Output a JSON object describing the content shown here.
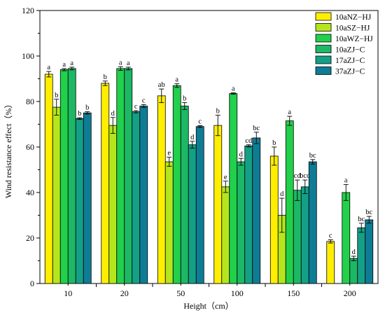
{
  "chart_data": {
    "type": "bar",
    "title": "",
    "xlabel": "Height（cm）",
    "ylabel": "Wind resistance effect（%）",
    "ylim": [
      0,
      120
    ],
    "yticks": [
      "0",
      "20",
      "40",
      "60",
      "80",
      "100",
      "120"
    ],
    "grid": false,
    "legend_position": "top-right",
    "categories": [
      "10",
      "20",
      "50",
      "100",
      "150",
      "200"
    ],
    "series": [
      {
        "name": "10aNZ−HJ",
        "color": "#ffee00",
        "values": [
          92,
          88,
          82.5,
          69.5,
          56,
          18.5
        ],
        "errors": [
          1.2,
          1.0,
          3.0,
          4.5,
          4.0,
          0.7
        ],
        "labels": [
          "a",
          "b",
          "ab",
          "b",
          "b",
          "c"
        ]
      },
      {
        "name": "10aSZ−HJ",
        "color": "#b5e61d",
        "values": [
          77.5,
          69.5,
          53.5,
          42.5,
          30,
          null
        ],
        "errors": [
          3.5,
          3.5,
          2.0,
          2.5,
          7.5,
          null
        ],
        "labels": [
          "b",
          "d",
          "e",
          "e",
          "d",
          ""
        ]
      },
      {
        "name": "10aWZ−HJ",
        "color": "#21d04b",
        "values": [
          94,
          94.5,
          87,
          83.5,
          71.5,
          40
        ],
        "errors": [
          0.5,
          0.8,
          0.8,
          0.3,
          2.0,
          3.5
        ],
        "labels": [
          "a",
          "a",
          "a",
          "a",
          "a",
          "a"
        ]
      },
      {
        "name": "10aZJ−C",
        "color": "#1cb865",
        "values": [
          94.5,
          94.5,
          78,
          53.5,
          41,
          11
        ],
        "errors": [
          0.6,
          0.6,
          1.5,
          1.5,
          4.5,
          1.0
        ],
        "labels": [
          "a",
          "a",
          "b",
          "d",
          "cd",
          "d"
        ]
      },
      {
        "name": "17aZJ−C",
        "color": "#14a086",
        "values": [
          72.5,
          75.5,
          61,
          60.5,
          42.5,
          24.5
        ],
        "errors": [
          0.4,
          0.5,
          1.5,
          0.5,
          3.0,
          2.0
        ],
        "labels": [
          "b",
          "c",
          "d",
          "cd",
          "bcd",
          "bc"
        ]
      },
      {
        "name": "37aZJ−C",
        "color": "#0f7c95",
        "values": [
          75,
          78,
          69,
          64,
          53.5,
          28
        ],
        "errors": [
          0.5,
          0.6,
          0.4,
          2.5,
          1.0,
          1.5
        ],
        "labels": [
          "b",
          "c",
          "c",
          "bc",
          "bc",
          "bc"
        ]
      }
    ]
  }
}
